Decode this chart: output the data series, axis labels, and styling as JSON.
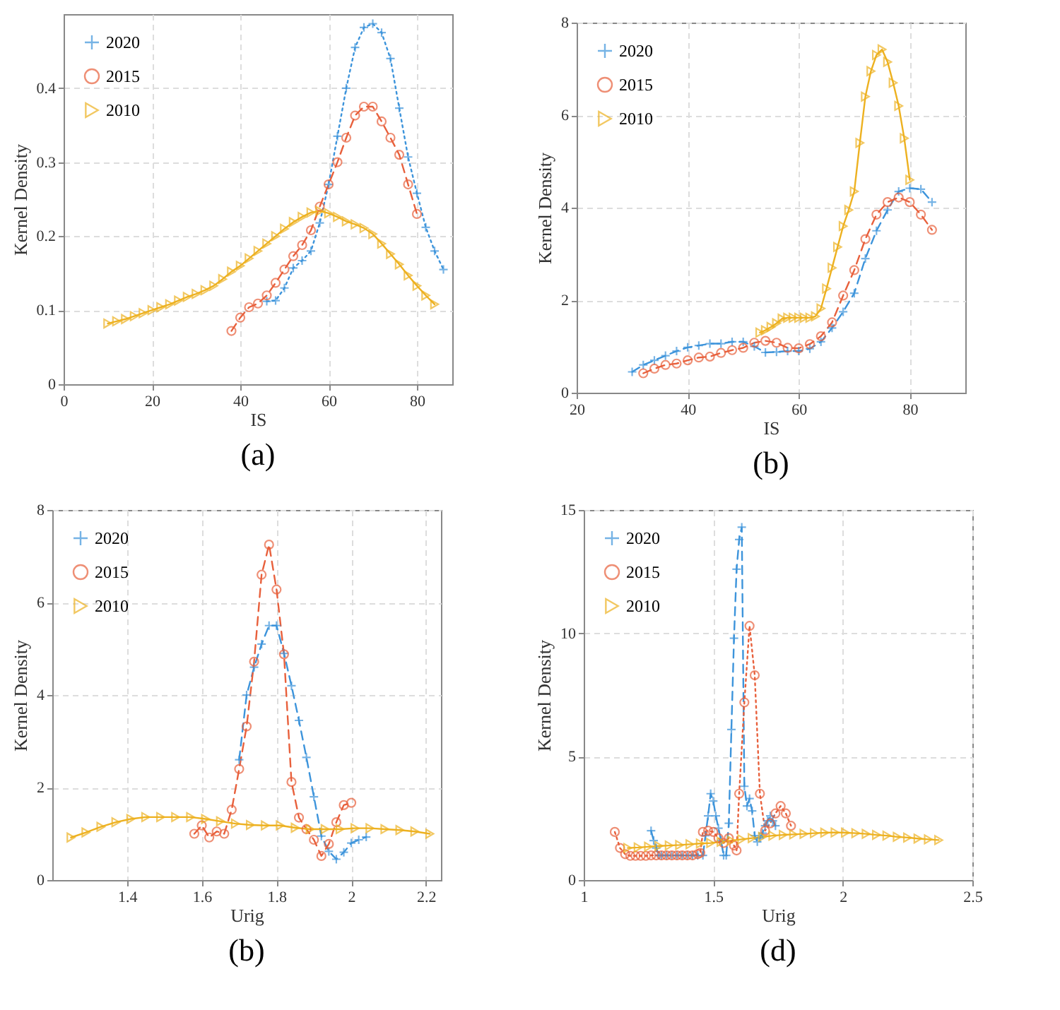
{
  "chart_data": [
    {
      "type": "line",
      "title": "(a)",
      "xlabel": "IS",
      "ylabel": "Kernel Density",
      "xlim": [
        0,
        88
      ],
      "xticks": [
        0,
        20,
        40,
        60,
        80
      ],
      "ylim": [
        0,
        0.5
      ],
      "yticks": [
        0,
        0.1,
        0.2,
        0.3,
        0.4
      ],
      "grid": true,
      "legend": "top left",
      "series": [
        {
          "name": "2020",
          "color": "#3d94db",
          "marker": "cross",
          "line_style": "dotted",
          "x": [
            46,
            48,
            50,
            52,
            54,
            56,
            58,
            60,
            62,
            64,
            66,
            68,
            70,
            72,
            74,
            76,
            78,
            80,
            82,
            84,
            86
          ],
          "values": [
            0.112,
            0.113,
            0.13,
            0.157,
            0.167,
            0.18,
            0.218,
            0.27,
            0.335,
            0.4,
            0.455,
            0.482,
            0.487,
            0.475,
            0.44,
            0.373,
            0.307,
            0.258,
            0.212,
            0.18,
            0.155
          ]
        },
        {
          "name": "2015",
          "color": "#e8603c",
          "marker": "circle",
          "line_style": "dashed",
          "x": [
            38,
            40,
            42,
            44,
            46,
            48,
            50,
            52,
            54,
            56,
            58,
            60,
            62,
            64,
            66,
            68,
            70,
            72,
            74,
            76,
            78,
            80
          ],
          "values": [
            0.072,
            0.09,
            0.104,
            0.109,
            0.12,
            0.137,
            0.155,
            0.173,
            0.188,
            0.208,
            0.24,
            0.27,
            0.3,
            0.333,
            0.363,
            0.375,
            0.375,
            0.355,
            0.333,
            0.31,
            0.27,
            0.23
          ]
        },
        {
          "name": "2010",
          "color": "#edb120",
          "marker": "triangle",
          "line_style": "solid",
          "x": [
            10,
            12,
            14,
            16,
            18,
            20,
            22,
            24,
            26,
            28,
            30,
            32,
            34,
            36,
            38,
            40,
            42,
            44,
            46,
            48,
            50,
            52,
            54,
            56,
            58,
            60,
            62,
            64,
            66,
            68,
            70,
            72,
            74,
            76,
            78,
            80,
            82,
            84
          ],
          "values": [
            0.082,
            0.085,
            0.088,
            0.092,
            0.096,
            0.1,
            0.104,
            0.108,
            0.113,
            0.118,
            0.122,
            0.127,
            0.133,
            0.142,
            0.152,
            0.16,
            0.17,
            0.18,
            0.19,
            0.2,
            0.21,
            0.219,
            0.226,
            0.232,
            0.234,
            0.231,
            0.226,
            0.22,
            0.216,
            0.211,
            0.203,
            0.19,
            0.176,
            0.162,
            0.147,
            0.133,
            0.12,
            0.108
          ]
        }
      ]
    },
    {
      "type": "line",
      "title": "(b)",
      "xlabel": "IS",
      "ylabel": "Kernel Density",
      "xlim": [
        20,
        90
      ],
      "xticks": [
        20,
        40,
        60,
        80
      ],
      "ylim": [
        0,
        8
      ],
      "yticks": [
        0,
        2,
        4,
        6,
        8
      ],
      "grid": true,
      "legend": "top left",
      "series": [
        {
          "name": "2020",
          "color": "#3d94db",
          "marker": "cross",
          "line_style": "dashed",
          "x": [
            30,
            32,
            34,
            36,
            38,
            40,
            42,
            44,
            46,
            48,
            50,
            52,
            54,
            56,
            58,
            60,
            62,
            64,
            66,
            68,
            70,
            72,
            74,
            76,
            78,
            80,
            82,
            84
          ],
          "values": [
            0.45,
            0.6,
            0.7,
            0.8,
            0.9,
            0.98,
            1.02,
            1.06,
            1.06,
            1.1,
            1.1,
            1.0,
            0.87,
            0.88,
            0.9,
            0.9,
            0.95,
            1.1,
            1.4,
            1.75,
            2.15,
            2.9,
            3.5,
            3.95,
            4.35,
            4.42,
            4.4,
            4.12
          ]
        },
        {
          "name": "2015",
          "color": "#e8603c",
          "marker": "circle",
          "line_style": "dashed",
          "x": [
            32,
            34,
            36,
            38,
            40,
            42,
            44,
            46,
            48,
            50,
            52,
            54,
            56,
            58,
            60,
            62,
            64,
            66,
            68,
            70,
            72,
            74,
            76,
            78,
            80,
            82,
            84
          ],
          "values": [
            0.42,
            0.52,
            0.6,
            0.63,
            0.7,
            0.76,
            0.78,
            0.86,
            0.92,
            0.97,
            1.08,
            1.12,
            1.08,
            0.97,
            0.96,
            1.05,
            1.22,
            1.52,
            2.1,
            2.65,
            3.32,
            3.85,
            4.12,
            4.22,
            4.12,
            3.85,
            3.52
          ]
        },
        {
          "name": "2010",
          "color": "#edb120",
          "marker": "triangle",
          "line_style": "solid",
          "x": [
            53,
            54,
            55,
            56,
            57,
            58,
            59,
            60,
            61,
            62,
            63,
            64,
            65,
            66,
            67,
            68,
            69,
            70,
            71,
            72,
            73,
            74,
            75,
            76,
            77,
            78,
            79,
            80
          ],
          "values": [
            1.3,
            1.35,
            1.42,
            1.5,
            1.6,
            1.62,
            1.62,
            1.62,
            1.62,
            1.62,
            1.65,
            1.82,
            2.25,
            2.7,
            3.15,
            3.6,
            3.95,
            4.35,
            5.4,
            6.4,
            6.95,
            7.3,
            7.42,
            7.15,
            6.7,
            6.2,
            5.5,
            4.6
          ]
        }
      ]
    },
    {
      "type": "line",
      "title": "(b)",
      "xlabel": "Urig",
      "ylabel": "Kernel Density",
      "xlim": [
        1.2,
        2.24
      ],
      "xticks": [
        1.4,
        1.6,
        1.8,
        2,
        2.2
      ],
      "ylim": [
        0,
        8
      ],
      "yticks": [
        0,
        2,
        4,
        6,
        8
      ],
      "grid": true,
      "legend": "top left",
      "series": [
        {
          "name": "2020",
          "color": "#3d94db",
          "marker": "cross",
          "line_style": "dashed",
          "x": [
            1.7,
            1.72,
            1.74,
            1.76,
            1.78,
            1.8,
            1.82,
            1.84,
            1.86,
            1.88,
            1.9,
            1.92,
            1.94,
            1.96,
            1.98,
            2.0,
            2.02,
            2.04
          ],
          "values": [
            2.6,
            4.0,
            4.6,
            5.1,
            5.5,
            5.5,
            4.9,
            4.2,
            3.45,
            2.65,
            1.8,
            0.95,
            0.62,
            0.45,
            0.6,
            0.8,
            0.87,
            0.93
          ]
        },
        {
          "name": "2015",
          "color": "#e8603c",
          "marker": "circle",
          "line_style": "dashed",
          "x": [
            1.58,
            1.6,
            1.62,
            1.64,
            1.66,
            1.68,
            1.7,
            1.72,
            1.74,
            1.76,
            1.78,
            1.8,
            1.82,
            1.84,
            1.86,
            1.88,
            1.9,
            1.92,
            1.94,
            1.96,
            1.98,
            2.0
          ],
          "values": [
            1.0,
            1.18,
            0.92,
            1.05,
            1.0,
            1.52,
            2.4,
            3.32,
            4.72,
            6.6,
            7.25,
            6.28,
            4.88,
            2.12,
            1.35,
            1.1,
            0.87,
            0.52,
            0.78,
            1.25,
            1.62,
            1.67
          ]
        },
        {
          "name": "2010",
          "color": "#edb120",
          "marker": "triangle",
          "line_style": "solid",
          "x": [
            1.25,
            1.29,
            1.33,
            1.37,
            1.41,
            1.45,
            1.49,
            1.53,
            1.57,
            1.61,
            1.65,
            1.69,
            1.73,
            1.77,
            1.81,
            1.85,
            1.89,
            1.93,
            1.97,
            2.01,
            2.05,
            2.09,
            2.13,
            2.17,
            2.21
          ],
          "values": [
            0.92,
            1.03,
            1.15,
            1.25,
            1.32,
            1.36,
            1.36,
            1.36,
            1.36,
            1.32,
            1.27,
            1.22,
            1.19,
            1.18,
            1.18,
            1.13,
            1.1,
            1.1,
            1.1,
            1.12,
            1.12,
            1.1,
            1.08,
            1.05,
            1.0
          ]
        }
      ]
    },
    {
      "type": "line",
      "title": "(d)",
      "xlabel": "Urig",
      "ylabel": "Kernel Density",
      "xlim": [
        1,
        2.5
      ],
      "xticks": [
        1,
        1.5,
        2,
        2.5
      ],
      "ylim": [
        0,
        15
      ],
      "yticks": [
        0,
        5,
        10,
        15
      ],
      "grid": true,
      "legend": "top left",
      "series": [
        {
          "name": "2020",
          "color": "#3d94db",
          "marker": "cross",
          "line_style": "dashed",
          "x": [
            1.26,
            1.27,
            1.28,
            1.29,
            1.3,
            1.32,
            1.34,
            1.36,
            1.38,
            1.4,
            1.42,
            1.44,
            1.46,
            1.47,
            1.48,
            1.49,
            1.5,
            1.51,
            1.52,
            1.53,
            1.54,
            1.55,
            1.56,
            1.57,
            1.58,
            1.59,
            1.6,
            1.61,
            1.62,
            1.63,
            1.64,
            1.65,
            1.66,
            1.67,
            1.68,
            1.69,
            1.7,
            1.71,
            1.72,
            1.73,
            1.74
          ],
          "values": [
            2.0,
            1.6,
            1.3,
            1.0,
            1.0,
            1.0,
            1.0,
            1.0,
            1.0,
            1.0,
            1.0,
            1.0,
            1.0,
            1.8,
            2.6,
            3.5,
            3.2,
            2.6,
            2.1,
            1.6,
            1.0,
            1.0,
            2.3,
            6.1,
            9.8,
            12.6,
            13.8,
            14.3,
            3.8,
            3.0,
            3.3,
            2.8,
            1.8,
            1.55,
            1.7,
            1.9,
            2.2,
            2.4,
            2.6,
            2.4,
            2.2
          ]
        },
        {
          "name": "2015",
          "color": "#e8603c",
          "marker": "circle",
          "line_style": "dotted",
          "x": [
            1.12,
            1.14,
            1.16,
            1.18,
            1.2,
            1.22,
            1.24,
            1.26,
            1.28,
            1.3,
            1.32,
            1.34,
            1.36,
            1.38,
            1.4,
            1.42,
            1.44,
            1.45,
            1.46,
            1.48,
            1.5,
            1.52,
            1.54,
            1.56,
            1.58,
            1.59,
            1.6,
            1.62,
            1.64,
            1.66,
            1.68,
            1.7,
            1.72,
            1.74,
            1.76,
            1.78,
            1.8
          ],
          "values": [
            1.95,
            1.3,
            1.05,
            0.98,
            0.98,
            0.98,
            0.98,
            1.0,
            1.0,
            1.0,
            1.0,
            1.0,
            1.0,
            1.0,
            1.0,
            1.0,
            1.05,
            1.1,
            1.95,
            2.0,
            1.95,
            1.7,
            1.5,
            1.7,
            1.4,
            1.2,
            3.5,
            7.2,
            10.3,
            8.3,
            3.5,
            2.0,
            2.3,
            2.7,
            3.0,
            2.7,
            2.2
          ]
        },
        {
          "name": "2010",
          "color": "#edb120",
          "marker": "triangle",
          "line_style": "solid",
          "x": [
            1.17,
            1.21,
            1.25,
            1.29,
            1.33,
            1.37,
            1.41,
            1.45,
            1.49,
            1.53,
            1.57,
            1.61,
            1.65,
            1.69,
            1.73,
            1.77,
            1.81,
            1.85,
            1.89,
            1.93,
            1.97,
            2.01,
            2.05,
            2.09,
            2.13,
            2.17,
            2.21,
            2.25,
            2.29,
            2.33,
            2.37
          ],
          "values": [
            1.3,
            1.32,
            1.35,
            1.38,
            1.4,
            1.42,
            1.45,
            1.48,
            1.5,
            1.55,
            1.6,
            1.65,
            1.7,
            1.75,
            1.8,
            1.83,
            1.85,
            1.87,
            1.9,
            1.92,
            1.93,
            1.92,
            1.9,
            1.87,
            1.83,
            1.8,
            1.75,
            1.72,
            1.68,
            1.65,
            1.62
          ]
        }
      ]
    }
  ]
}
